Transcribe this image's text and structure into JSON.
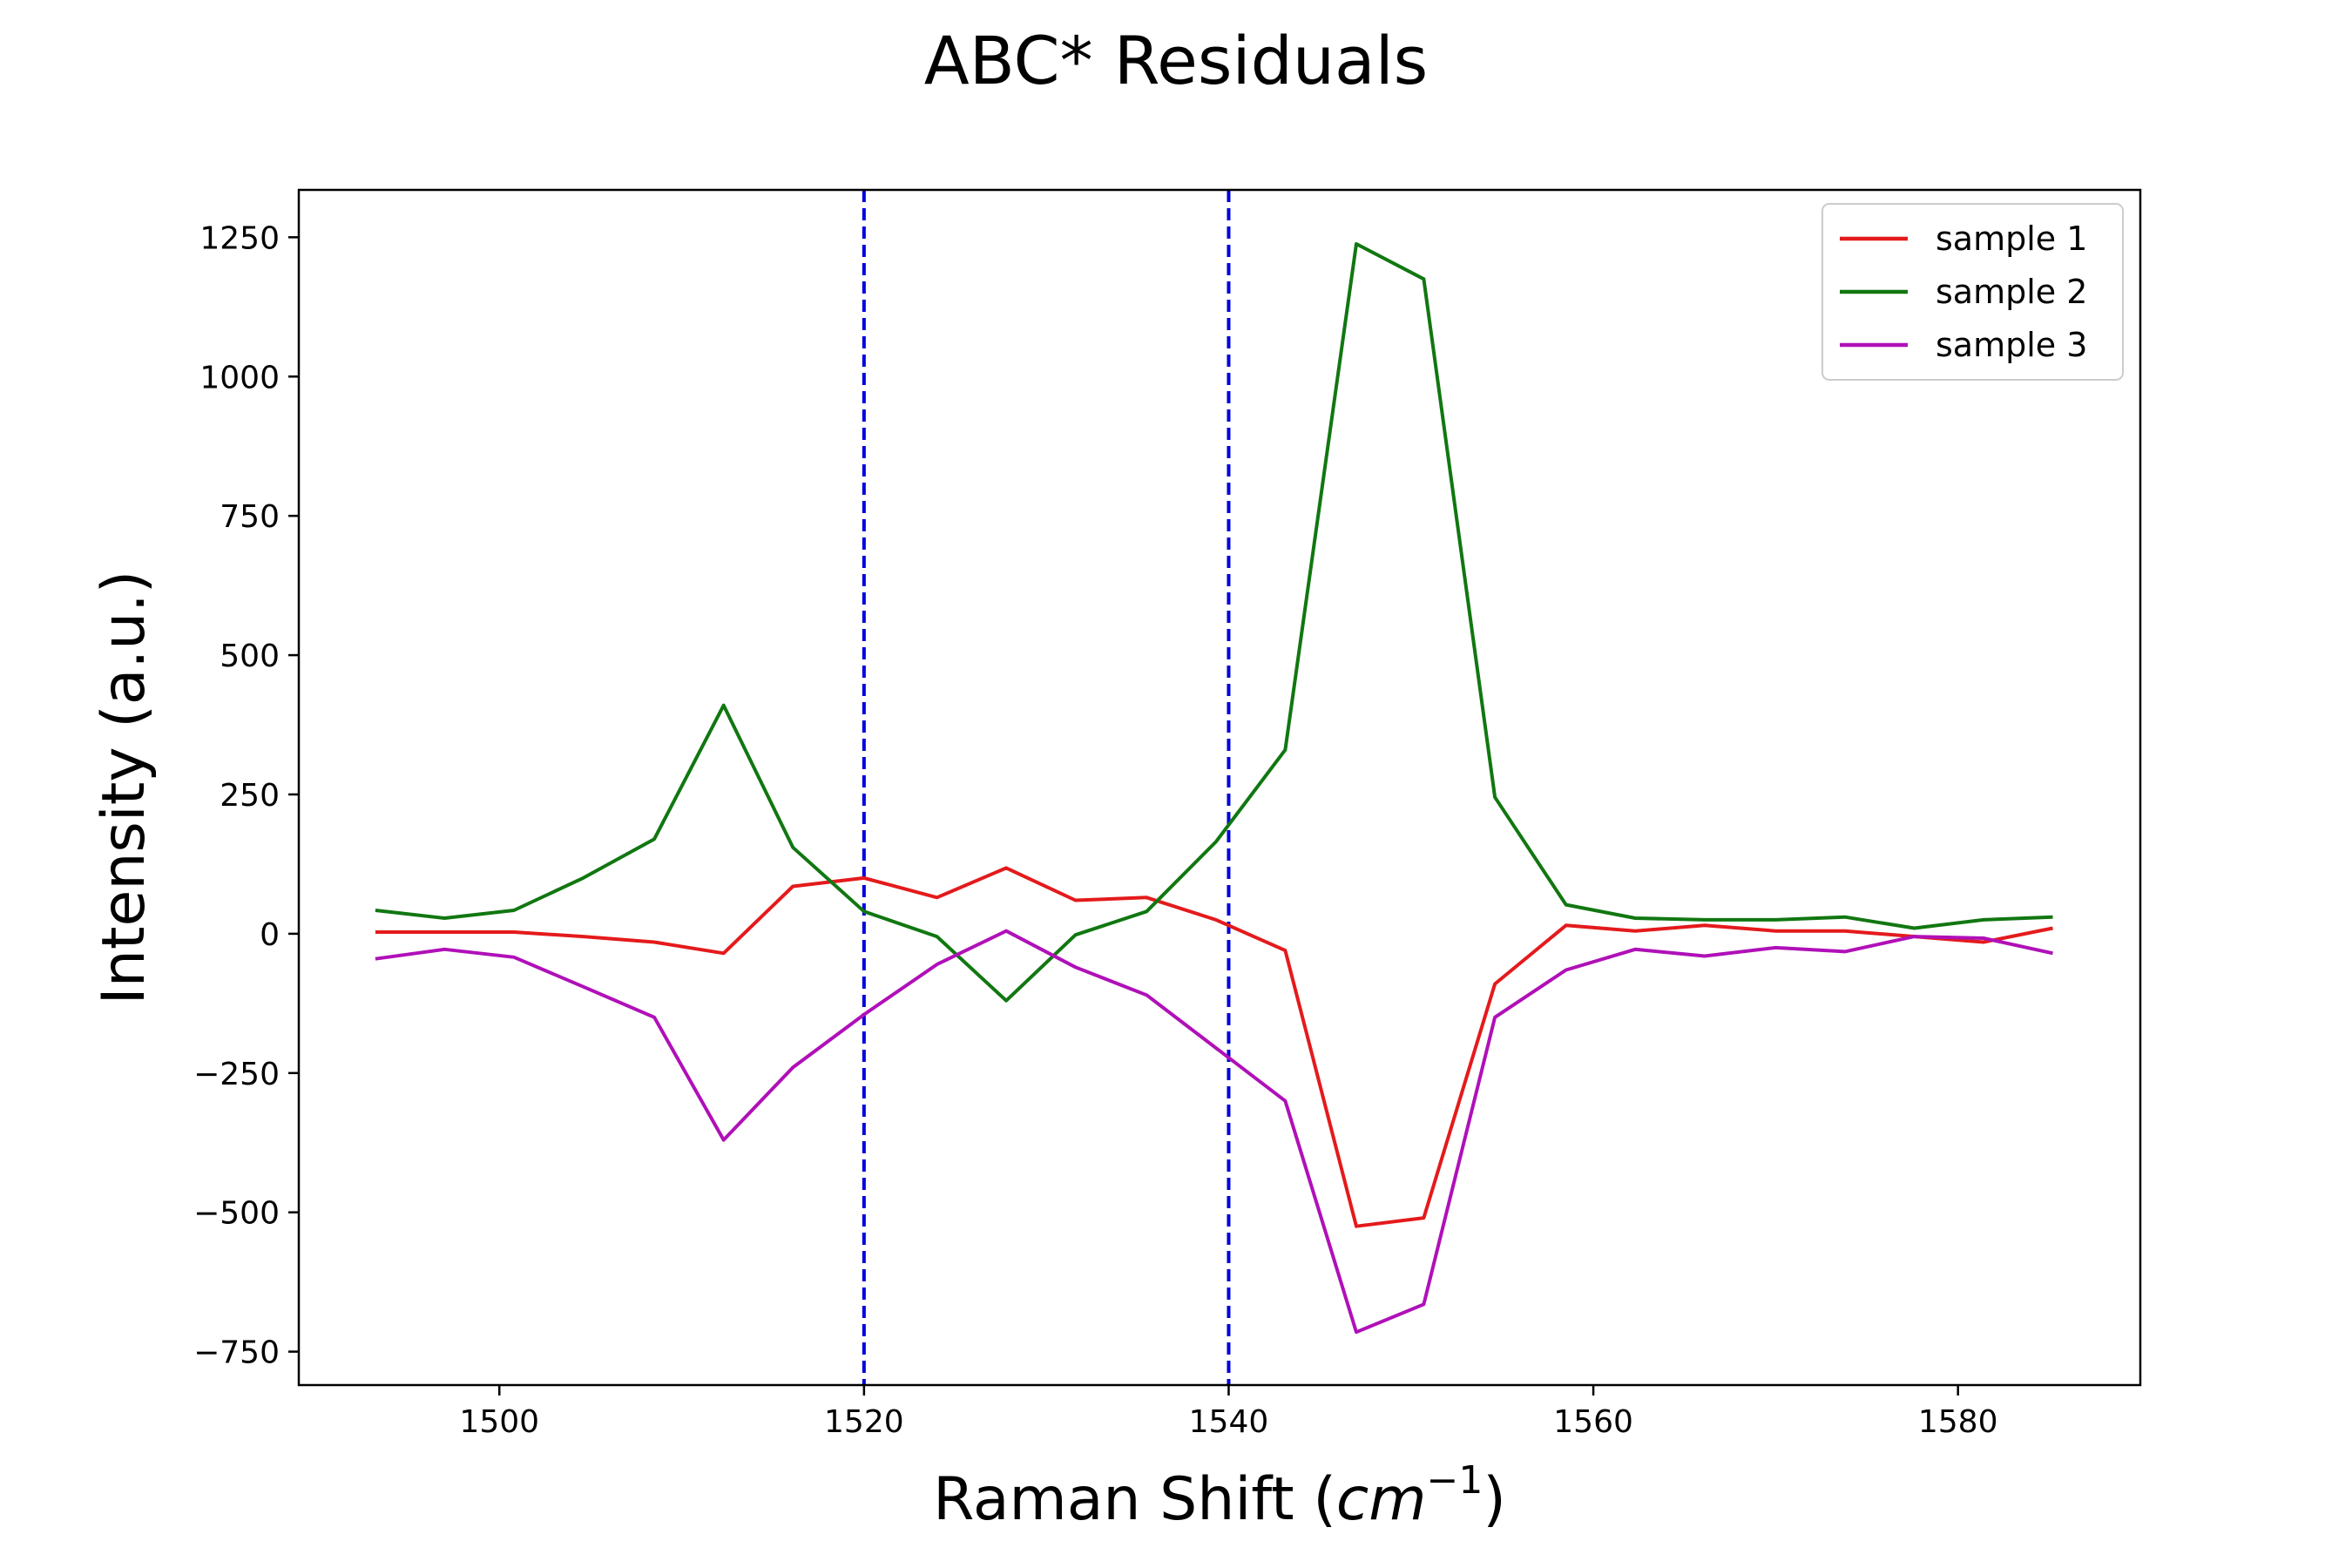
{
  "chart_data": {
    "type": "line",
    "title": "ABC* Residuals",
    "xlabel_main": "Raman Shift (",
    "xlabel_unit": "cm",
    "xlabel_sup": "−1",
    "xlabel_close": ")",
    "ylabel": "Intensity (a.u.)",
    "xlim": [
      1489,
      1590
    ],
    "ylim": [
      -810,
      1335
    ],
    "xticks": [
      1500,
      1520,
      1540,
      1560,
      1580
    ],
    "yticks": [
      -750,
      -500,
      -250,
      0,
      250,
      500,
      750,
      1000,
      1250
    ],
    "vlines": [
      1520,
      1540
    ],
    "vline_color": "#0000dd",
    "legend_position": "top-right",
    "x": [
      1493.2,
      1497.0,
      1500.8,
      1504.6,
      1508.5,
      1512.3,
      1516.1,
      1520.0,
      1524.0,
      1527.8,
      1531.6,
      1535.5,
      1539.3,
      1543.1,
      1547.0,
      1550.7,
      1554.6,
      1558.5,
      1562.3,
      1566.1,
      1570.0,
      1573.8,
      1577.6,
      1581.4,
      1585.2
    ],
    "series": [
      {
        "name": "sample 1",
        "color": "#e41a1c",
        "values": [
          3,
          3,
          3,
          -5,
          -15,
          -35,
          85,
          100,
          65,
          118,
          60,
          65,
          25,
          -30,
          -525,
          -510,
          -90,
          15,
          5,
          15,
          5,
          5,
          -5,
          -15,
          10
        ]
      },
      {
        "name": "sample 2",
        "color": "#117711",
        "values": [
          42,
          28,
          42,
          100,
          170,
          410,
          155,
          40,
          -5,
          -120,
          -2,
          40,
          165,
          330,
          1238,
          1175,
          245,
          52,
          28,
          25,
          25,
          30,
          10,
          25,
          30
        ]
      },
      {
        "name": "sample 3",
        "color": "#b010b8",
        "values": [
          -45,
          -28,
          -42,
          -95,
          -150,
          -370,
          -240,
          -145,
          -55,
          5,
          -60,
          -110,
          -205,
          -300,
          -715,
          -665,
          -150,
          -65,
          -28,
          -40,
          -25,
          -32,
          -5,
          -8,
          -35
        ]
      }
    ]
  }
}
